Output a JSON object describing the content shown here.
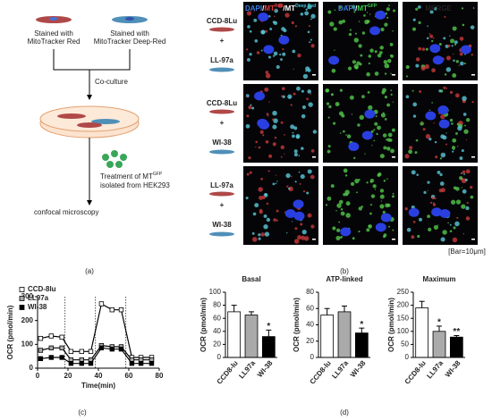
{
  "figure": {
    "panel_labels": [
      "(a)",
      "(b)",
      "(c)",
      "(d)"
    ],
    "diagram": {
      "stain_red": [
        "Stained with",
        "MitoTracker Red"
      ],
      "stain_deep_red": [
        "Stained with",
        "MitoTracker Deep-Red"
      ],
      "coculture": "Co-culture",
      "treatment": {
        "text": "Treatment of MT",
        "sup": "GFP",
        "line2": "isolated from HEK293"
      },
      "microscopy": "confocal microscopy"
    },
    "rows": [
      [
        "CCD-8Lu",
        "+",
        "LL-97a"
      ],
      [
        "CCD-8Lu",
        "+",
        "WI-38"
      ],
      [
        "LL-97a",
        "+",
        "WI-38"
      ]
    ],
    "headers": [
      {
        "a": "DAPI",
        "b": "/",
        "c": "MT",
        "c_sup": "Red",
        "d": "/MT",
        "d_sup": "Deep Red"
      },
      {
        "a": "DAPI",
        "b": "/",
        "c": "MT",
        "c_sup": "GFP"
      },
      {
        "a": "MERGE"
      }
    ],
    "scale_bar": "[Bar=10μm]"
  },
  "chart_data": [
    {
      "type": "line",
      "xlabel": "Time(min)",
      "ylabel": "OCR (pmol/min)",
      "x": [
        2,
        9,
        16,
        22,
        29,
        35,
        42,
        49,
        55,
        62,
        68,
        75
      ],
      "xlim": [
        0,
        80
      ],
      "xticks": [
        0,
        20,
        40,
        60,
        80
      ],
      "ylim": [
        0,
        300
      ],
      "yticks": [
        0,
        100,
        200,
        300
      ],
      "vlines": [
        18,
        38,
        58
      ],
      "legend": "upper left",
      "series": [
        {
          "name": "CCD-8lu",
          "color": "#ffffff",
          "values": [
            125,
            135,
            130,
            70,
            70,
            70,
            270,
            245,
            245,
            45,
            45,
            45
          ]
        },
        {
          "name": "LL97a",
          "color": "#aaaaaa",
          "values": [
            75,
            85,
            85,
            35,
            35,
            35,
            95,
            90,
            90,
            35,
            35,
            35
          ]
        },
        {
          "name": "WI-38",
          "color": "#000000",
          "values": [
            40,
            45,
            45,
            20,
            20,
            20,
            85,
            80,
            80,
            20,
            20,
            20
          ]
        }
      ]
    },
    {
      "type": "bar",
      "title": "Basal",
      "ylabel": "OCR (pmol/min)",
      "categories": [
        "CCD8-lu",
        "LL97a",
        "WI-38"
      ],
      "values": [
        70,
        65,
        32
      ],
      "errors": [
        10,
        5,
        10
      ],
      "colors": [
        "#ffffff",
        "#aaaaaa",
        "#000000"
      ],
      "ylim": [
        0,
        100
      ],
      "yticks": [
        0,
        20,
        40,
        60,
        80,
        100
      ],
      "annotations": [
        {
          "index": 2,
          "text": "*"
        }
      ]
    },
    {
      "type": "bar",
      "title": "ATP-linked",
      "ylabel": "OCR (pmol/min)",
      "categories": [
        "CCD8-lu",
        "LL97a",
        "WI-38"
      ],
      "values": [
        52,
        56,
        30
      ],
      "errors": [
        8,
        7,
        6
      ],
      "colors": [
        "#ffffff",
        "#aaaaaa",
        "#000000"
      ],
      "ylim": [
        0,
        80
      ],
      "yticks": [
        0,
        20,
        40,
        60,
        80
      ],
      "annotations": [
        {
          "index": 2,
          "text": "*"
        }
      ]
    },
    {
      "type": "bar",
      "title": "Maximum",
      "ylabel": "OCR (pmol/min)",
      "categories": [
        "CCD8-lu",
        "LL97a",
        "WI-38"
      ],
      "values": [
        190,
        100,
        78
      ],
      "errors": [
        25,
        20,
        6
      ],
      "colors": [
        "#ffffff",
        "#aaaaaa",
        "#000000"
      ],
      "ylim": [
        0,
        250
      ],
      "yticks": [
        0,
        50,
        100,
        150,
        200,
        250
      ],
      "annotations": [
        {
          "index": 1,
          "text": "*"
        },
        {
          "index": 2,
          "text": "**"
        }
      ]
    }
  ]
}
